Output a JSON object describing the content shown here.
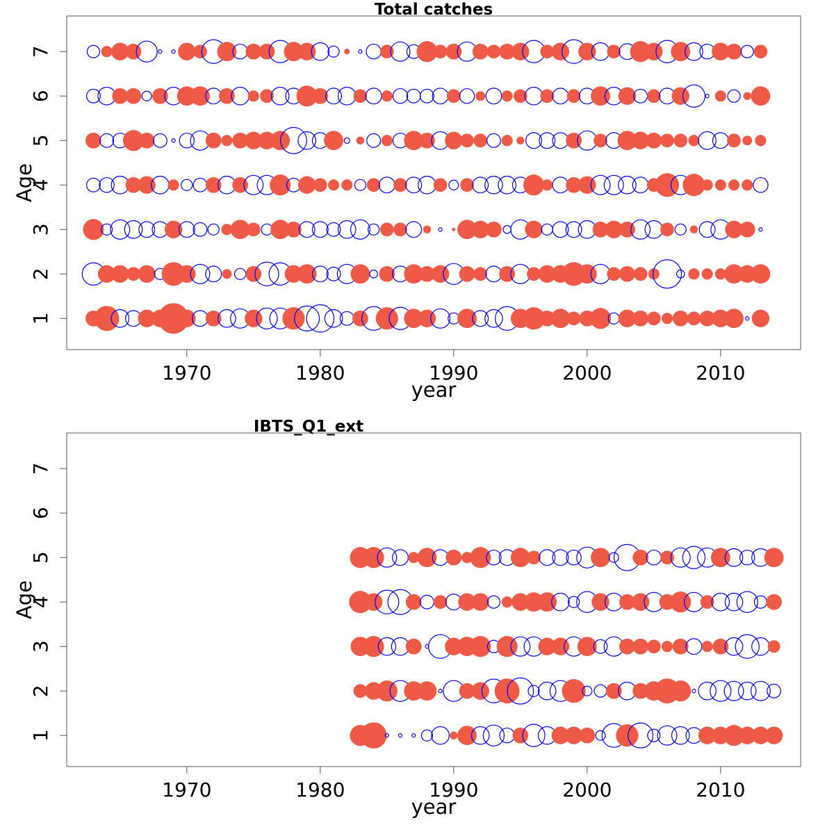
{
  "chart_data": [
    {
      "type": "scatter",
      "title": "Total catches",
      "xlabel": "year",
      "ylabel": "Age",
      "xlim": [
        1961,
        2016
      ],
      "ylim": [
        0.3,
        7.8
      ],
      "x_ticks": [
        1970,
        1980,
        1990,
        2000,
        2010
      ],
      "y_ticks": [
        1,
        2,
        3,
        4,
        5,
        6,
        7
      ],
      "marker_encoding": "bubble radius = magnitude of residual; filled red = positive, open blue = negative",
      "colors": {
        "positive": "#EE5A45",
        "negative": "#0000FF"
      },
      "years": [
        1963,
        1964,
        1965,
        1966,
        1967,
        1968,
        1969,
        1970,
        1971,
        1972,
        1973,
        1974,
        1975,
        1976,
        1977,
        1978,
        1979,
        1980,
        1981,
        1982,
        1983,
        1984,
        1985,
        1986,
        1987,
        1988,
        1989,
        1990,
        1991,
        1992,
        1993,
        1994,
        1995,
        1996,
        1997,
        1998,
        1999,
        2000,
        2001,
        2002,
        2003,
        2004,
        2005,
        2006,
        2007,
        2008,
        2009,
        2010,
        2011,
        2012,
        2013
      ],
      "ages": [
        {
          "age": 1,
          "residuals": [
            0.4,
            1.0,
            -0.5,
            -0.4,
            0.5,
            0.5,
            1.5,
            0.5,
            -0.4,
            0.4,
            -0.5,
            -0.6,
            0.5,
            -0.7,
            -0.7,
            0.8,
            -1.0,
            -1.2,
            -0.5,
            -0.3,
            0.4,
            -0.9,
            0.8,
            -0.8,
            0.6,
            0.5,
            -0.6,
            -0.2,
            0.6,
            -0.4,
            -0.5,
            -0.9,
            0.6,
            0.8,
            0.4,
            0.6,
            0.3,
            0.4,
            0.7,
            -0.2,
            0.5,
            0.4,
            0.3,
            0.2,
            0.4,
            0.3,
            0.4,
            0.5,
            0.6,
            -0.02,
            0.5
          ]
        },
        {
          "age": 2,
          "residuals": [
            -0.8,
            0.5,
            0.5,
            0.3,
            0.5,
            -0.2,
            0.9,
            0.5,
            -0.6,
            -0.4,
            0.15,
            -0.2,
            0.4,
            -0.9,
            -0.8,
            0.5,
            0.6,
            -0.4,
            -0.3,
            -0.6,
            0.6,
            -0.1,
            0.4,
            -0.4,
            0.6,
            0.4,
            0.5,
            -0.7,
            0.4,
            0.3,
            -0.4,
            0.4,
            -0.6,
            0.3,
            0.5,
            0.5,
            0.9,
            0.6,
            -0.6,
            0.3,
            0.4,
            0.3,
            0.2,
            -1.3,
            -0.1,
            0.2,
            0.2,
            0.2,
            0.6,
            0.5,
            0.6
          ]
        },
        {
          "age": 3,
          "residuals": [
            0.7,
            -0.2,
            -0.6,
            -0.5,
            -0.4,
            -0.4,
            0.5,
            -0.4,
            -0.3,
            -0.2,
            0.2,
            0.6,
            0.3,
            -0.2,
            0.6,
            0.4,
            -0.4,
            -0.4,
            -0.3,
            -0.5,
            -0.6,
            -0.2,
            0.3,
            0.3,
            -0.4,
            0.1,
            -0.02,
            0.02,
            0.6,
            0.5,
            0.4,
            -0.1,
            -0.6,
            0.5,
            -0.2,
            -0.4,
            -0.4,
            -0.5,
            0.4,
            0.5,
            0.4,
            -0.6,
            -0.5,
            0.3,
            -0.2,
            0.1,
            -0.4,
            -0.6,
            0.5,
            0.4,
            -0.02
          ]
        },
        {
          "age": 4,
          "residuals": [
            -0.3,
            -0.35,
            -0.5,
            0.4,
            0.5,
            -0.5,
            0.2,
            -0.2,
            -0.3,
            0.4,
            -0.5,
            0.4,
            -0.6,
            -0.6,
            0.7,
            -0.3,
            0.5,
            0.3,
            0.2,
            0.2,
            -0.2,
            0.3,
            -0.4,
            0.3,
            -0.4,
            -0.5,
            0.3,
            -0.15,
            0.3,
            -0.4,
            -0.5,
            -0.5,
            -0.4,
            0.7,
            0.2,
            -0.4,
            0.4,
            0.5,
            -0.6,
            -0.6,
            -0.5,
            -0.4,
            0.3,
            0.9,
            -0.6,
            0.8,
            0.2,
            0.2,
            0.2,
            0.2,
            -0.35
          ]
        },
        {
          "age": 5,
          "residuals": [
            0.4,
            -0.3,
            -0.35,
            0.7,
            0.4,
            -0.3,
            -0.02,
            -0.35,
            -0.6,
            0.4,
            0.2,
            0.4,
            0.5,
            0.5,
            0.6,
            -1.1,
            -0.5,
            -0.4,
            0.6,
            -0.05,
            0.1,
            -0.3,
            0.2,
            -0.35,
            0.6,
            0.4,
            -0.5,
            0.5,
            0.3,
            0.3,
            -0.3,
            0.2,
            0.1,
            -0.4,
            -0.4,
            -0.4,
            0.4,
            -0.6,
            0.3,
            -0.4,
            0.6,
            0.5,
            0.4,
            0.3,
            0.3,
            0.2,
            -0.5,
            -0.4,
            0.3,
            0.15,
            0.2
          ]
        },
        {
          "age": 6,
          "residuals": [
            -0.3,
            -0.5,
            0.4,
            0.4,
            -0.15,
            0.4,
            -0.5,
            0.6,
            0.6,
            -0.4,
            0.4,
            -0.5,
            0.2,
            0.3,
            -0.5,
            -0.4,
            0.7,
            0.4,
            -0.4,
            -0.5,
            0.3,
            -0.4,
            0.2,
            -0.35,
            -0.3,
            -0.3,
            -0.4,
            0.3,
            -0.35,
            0.15,
            -0.4,
            0.2,
            0.3,
            -0.5,
            0.3,
            -0.4,
            0.3,
            -0.4,
            0.6,
            -0.5,
            0.5,
            -0.3,
            0.3,
            -0.4,
            0.5,
            -0.8,
            -0.02,
            0.2,
            -0.25,
            0.1,
            0.6
          ]
        },
        {
          "age": 7,
          "residuals": [
            -0.25,
            0.2,
            0.5,
            0.4,
            -0.7,
            -0.02,
            -0.02,
            0.5,
            0.3,
            -0.9,
            0.6,
            -0.35,
            0.4,
            0.4,
            -0.8,
            0.6,
            0.5,
            -0.5,
            -0.2,
            0.05,
            -0.02,
            -0.35,
            0.3,
            -0.6,
            -0.3,
            0.7,
            0.3,
            0.4,
            -0.6,
            0.4,
            0.3,
            0.4,
            0.5,
            -0.8,
            0.3,
            0.5,
            -0.9,
            0.5,
            -0.5,
            0.3,
            -0.4,
            0.7,
            0.5,
            -0.8,
            0.6,
            -0.5,
            -0.35,
            0.5,
            0.4,
            -0.25,
            0.3
          ]
        }
      ]
    },
    {
      "type": "scatter",
      "title": "IBTS_Q1_ext",
      "xlabel": "year",
      "ylabel": "Age",
      "xlim": [
        1961,
        2016
      ],
      "ylim": [
        0.3,
        7.8
      ],
      "x_ticks": [
        1970,
        1980,
        1990,
        2000,
        2010
      ],
      "y_ticks": [
        1,
        2,
        3,
        4,
        5,
        6,
        7
      ],
      "marker_encoding": "bubble radius = magnitude of residual; filled red = positive, open blue = negative",
      "colors": {
        "positive": "#EE5A45",
        "negative": "#0000FF"
      },
      "years": [
        1983,
        1984,
        1985,
        1986,
        1987,
        1988,
        1989,
        1990,
        1991,
        1992,
        1993,
        1994,
        1995,
        1996,
        1997,
        1998,
        1999,
        2000,
        2001,
        2002,
        2003,
        2004,
        2005,
        2006,
        2007,
        2008,
        2009,
        2010,
        2011,
        2012,
        2013,
        2014
      ],
      "ages": [
        {
          "age": 1,
          "residuals": [
            0.7,
            1.1,
            -0.02,
            -0.02,
            -0.02,
            -0.2,
            -0.5,
            0.1,
            0.6,
            -0.5,
            -0.7,
            -0.35,
            0.4,
            -0.8,
            -0.5,
            0.5,
            0.5,
            0.4,
            -0.15,
            -0.9,
            0.8,
            -1.0,
            -0.25,
            -0.6,
            -0.5,
            -0.4,
            0.5,
            0.5,
            0.7,
            0.5,
            0.5,
            0.5
          ]
        },
        {
          "age": 2,
          "residuals": [
            0.3,
            0.5,
            0.7,
            -0.7,
            0.6,
            0.6,
            -0.02,
            -0.7,
            0.4,
            0.5,
            -0.9,
            1.0,
            -1.1,
            -0.2,
            -0.5,
            -0.7,
            0.9,
            -0.15,
            -0.25,
            0.4,
            -0.5,
            0.4,
            0.6,
            1.0,
            0.7,
            -0.02,
            -0.5,
            -0.7,
            -0.6,
            -0.5,
            -0.6,
            -0.3
          ]
        },
        {
          "age": 3,
          "residuals": [
            0.6,
            0.7,
            -0.5,
            -0.5,
            0.4,
            -0.02,
            -0.9,
            0.5,
            0.6,
            0.7,
            -0.25,
            0.7,
            -0.6,
            -0.6,
            0.5,
            0.5,
            -0.6,
            0.6,
            -0.3,
            -0.6,
            0.4,
            0.4,
            0.3,
            0.2,
            0.4,
            -0.4,
            0.2,
            0.4,
            -0.5,
            -0.9,
            -0.5,
            0.25
          ]
        },
        {
          "age": 4,
          "residuals": [
            0.8,
            0.5,
            -0.9,
            -1.0,
            0.4,
            -0.3,
            0.3,
            -0.4,
            0.5,
            0.5,
            -0.25,
            0.2,
            0.5,
            0.6,
            0.6,
            -0.5,
            -0.2,
            -0.7,
            0.5,
            -0.5,
            0.4,
            0.5,
            -0.6,
            0.4,
            0.7,
            -0.6,
            0.3,
            -0.5,
            -0.5,
            -0.7,
            -0.25,
            0.4
          ]
        },
        {
          "age": 5,
          "residuals": [
            0.7,
            0.7,
            -0.6,
            -0.4,
            0.2,
            0.6,
            -0.4,
            0.4,
            0.2,
            0.7,
            -0.35,
            -0.4,
            0.6,
            0.3,
            -0.4,
            -0.4,
            -0.35,
            -0.7,
            0.6,
            -0.15,
            -1.1,
            0.4,
            -0.35,
            0.3,
            -0.6,
            -0.8,
            -0.6,
            0.6,
            -0.5,
            -0.35,
            -0.5,
            0.6
          ]
        },
        {
          "age": 6,
          "residuals": []
        },
        {
          "age": 7,
          "residuals": []
        }
      ]
    }
  ]
}
